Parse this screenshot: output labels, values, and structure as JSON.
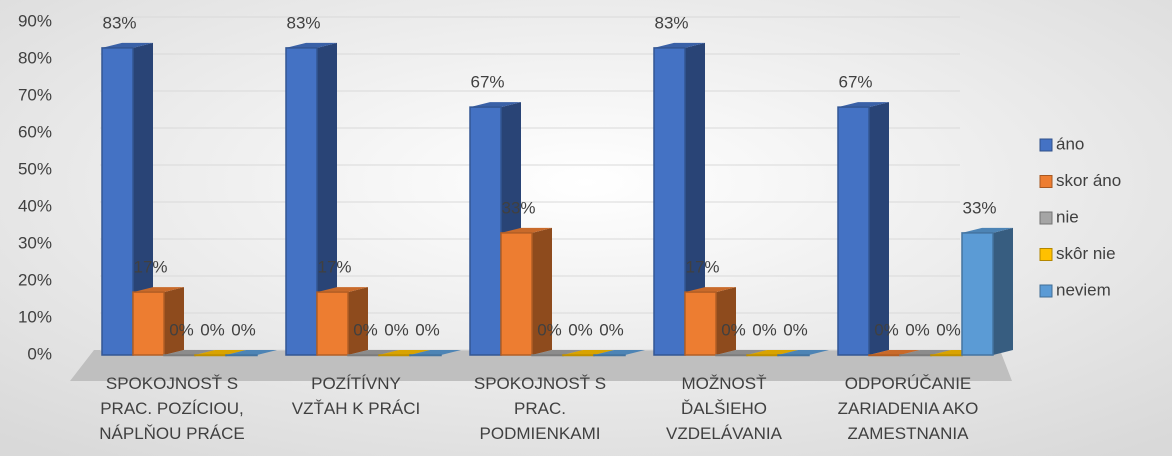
{
  "chart_data": {
    "type": "bar",
    "categories": [
      [
        "SPOKOJNOSŤ S",
        "PRAC. POZÍCIOU,",
        "NÁPLŇOU PRÁCE"
      ],
      [
        "POZÍTÍVNY",
        "VZŤAH K PRÁCI"
      ],
      [
        "SPOKOJNOSŤ S",
        "PRAC.",
        "PODMIENKAMI"
      ],
      [
        "MOŽNOSŤ",
        "ĎALŠIEHO",
        "VZDELÁVANIA"
      ],
      [
        "ODPORÚČANIE",
        "ZARIADENIA AKO",
        "ZAMESTNANIA"
      ]
    ],
    "series": [
      {
        "name": "áno",
        "color": "#4472c4",
        "values": [
          83,
          83,
          67,
          83,
          67
        ],
        "value_labels": [
          "83%",
          "83%",
          "67%",
          "83%",
          "67%"
        ]
      },
      {
        "name": "skor áno",
        "color": "#ed7d31",
        "values": [
          17,
          17,
          33,
          17,
          0
        ],
        "value_labels": [
          "17%",
          "17%",
          "33%",
          "17%",
          "0%"
        ]
      },
      {
        "name": "nie",
        "color": "#a5a5a5",
        "values": [
          0,
          0,
          0,
          0,
          0
        ],
        "value_labels": [
          "0%",
          "0%",
          "0%",
          "0%",
          "0%"
        ]
      },
      {
        "name": "skôr nie",
        "color": "#ffc000",
        "values": [
          0,
          0,
          0,
          0,
          0
        ],
        "value_labels": [
          "0%",
          "0%",
          "0%",
          "0%",
          "0%"
        ]
      },
      {
        "name": "neviem",
        "color": "#5b9bd5",
        "values": [
          0,
          0,
          0,
          0,
          33
        ],
        "value_labels": [
          "0%",
          "0%",
          "0%",
          "0%",
          "33%"
        ]
      }
    ],
    "ylim": [
      0,
      90
    ],
    "yticks": [
      {
        "value": 0,
        "label": "0%"
      },
      {
        "value": 10,
        "label": "10%"
      },
      {
        "value": 20,
        "label": "20%"
      },
      {
        "value": 30,
        "label": "30%"
      },
      {
        "value": 40,
        "label": "40%"
      },
      {
        "value": 50,
        "label": "50%"
      },
      {
        "value": 60,
        "label": "60%"
      },
      {
        "value": 70,
        "label": "70%"
      },
      {
        "value": 80,
        "label": "80%"
      },
      {
        "value": 90,
        "label": "90%"
      }
    ],
    "grid": true,
    "legend": "right"
  }
}
